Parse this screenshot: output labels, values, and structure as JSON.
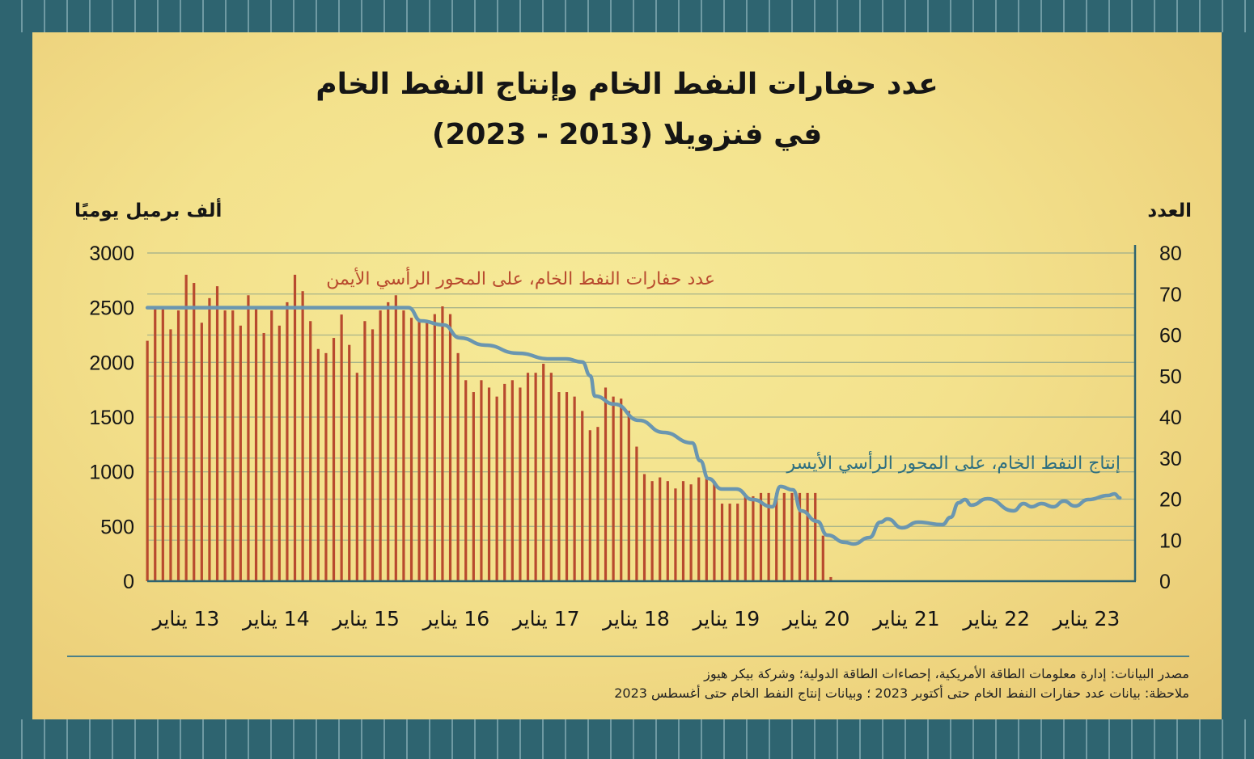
{
  "title_line1": "عدد حفارات النفط الخام وإنتاج النفط الخام",
  "title_line2": "في فنزويلا (2013 - 2023)",
  "colors": {
    "bars": "#b84a2e",
    "line": "#6a96b0",
    "axis": "#2e6470",
    "grid": "#a9b48a"
  },
  "chart_data": {
    "type": "bar+line",
    "left_axis": {
      "title": "ألف برميل يوميًا",
      "ticks": [
        0,
        500,
        1000,
        1500,
        2000,
        2500,
        3000
      ],
      "ylim": [
        0,
        3000
      ]
    },
    "right_axis": {
      "title": "العدد",
      "ticks": [
        0,
        10,
        20,
        30,
        40,
        50,
        60,
        70,
        80
      ],
      "ylim": [
        0,
        80
      ]
    },
    "x_ticks": [
      {
        "year": 2013,
        "label": "13 يناير"
      },
      {
        "year": 2014,
        "label": "14 يناير"
      },
      {
        "year": 2015,
        "label": "15 يناير"
      },
      {
        "year": 2016,
        "label": "16 يناير"
      },
      {
        "year": 2017,
        "label": "17 يناير"
      },
      {
        "year": 2018,
        "label": "18 يناير"
      },
      {
        "year": 2019,
        "label": "19 يناير"
      },
      {
        "year": 2020,
        "label": "20 يناير"
      },
      {
        "year": 2021,
        "label": "21 يناير"
      },
      {
        "year": 2022,
        "label": "22 يناير"
      },
      {
        "year": 2023,
        "label": "23 يناير"
      }
    ],
    "xlim": [
      2012.57,
      2023.55
    ],
    "series": [
      {
        "name": "عدد حفارات النفط الخام، على المحور الرأسي الأيمن",
        "type": "bar",
        "axis": "right",
        "x_start": 2012.57,
        "x_end": 2020.16,
        "values": [
          58.6,
          67,
          67,
          61.4,
          66,
          74.7,
          72.7,
          63,
          69,
          71.9,
          66,
          66,
          62.3,
          69.7,
          67,
          60.5,
          66,
          62.3,
          68,
          74.7,
          70.7,
          63.4,
          56.6,
          55.6,
          59.3,
          65,
          57.6,
          50.8,
          63.4,
          61.4,
          66,
          68,
          69.7,
          66,
          64.2,
          63.4,
          63.2,
          65.1,
          67,
          65.1,
          55.6,
          49,
          46.1,
          49,
          47.2,
          45,
          48.1,
          49,
          47.2,
          50.8,
          50.8,
          53,
          50.8,
          46.1,
          46.1,
          45,
          41.5,
          36.8,
          37.6,
          47.2,
          45,
          44.5,
          41.5,
          32.8,
          26.1,
          24.4,
          25.3,
          24.4,
          22.6,
          24.4,
          23.6,
          25.3,
          25.3,
          24.4,
          18.9,
          18.9,
          18.9,
          20.7,
          20.7,
          21.5,
          21.5,
          21.5,
          21.5,
          21.5,
          21.5,
          21.5,
          21.5,
          11.1,
          1
        ]
      },
      {
        "name": "إنتاج النفط الخام، على المحور الرأسي الأيسر",
        "type": "line",
        "axis": "left",
        "points": [
          [
            2012.57,
            2500
          ],
          [
            2015.47,
            2500
          ],
          [
            2015.61,
            2379
          ],
          [
            2015.86,
            2342
          ],
          [
            2016.04,
            2224
          ],
          [
            2016.32,
            2158
          ],
          [
            2016.68,
            2084
          ],
          [
            2017.04,
            2032
          ],
          [
            2017.22,
            2032
          ],
          [
            2017.4,
            2003
          ],
          [
            2017.49,
            1877
          ],
          [
            2017.54,
            1692
          ],
          [
            2017.76,
            1618
          ],
          [
            2018.03,
            1470
          ],
          [
            2018.3,
            1360
          ],
          [
            2018.62,
            1264
          ],
          [
            2018.71,
            1101
          ],
          [
            2018.8,
            938
          ],
          [
            2018.95,
            842
          ],
          [
            2019.11,
            842
          ],
          [
            2019.29,
            746
          ],
          [
            2019.51,
            680
          ],
          [
            2019.6,
            865
          ],
          [
            2019.74,
            835
          ],
          [
            2019.83,
            643
          ],
          [
            2020.01,
            547
          ],
          [
            2020.12,
            421
          ],
          [
            2020.32,
            355
          ],
          [
            2020.41,
            340
          ],
          [
            2020.59,
            399
          ],
          [
            2020.71,
            539
          ],
          [
            2020.79,
            569
          ],
          [
            2020.95,
            488
          ],
          [
            2021.13,
            539
          ],
          [
            2021.4,
            517
          ],
          [
            2021.49,
            584
          ],
          [
            2021.58,
            717
          ],
          [
            2021.65,
            746
          ],
          [
            2021.72,
            695
          ],
          [
            2021.9,
            754
          ],
          [
            2022.19,
            643
          ],
          [
            2022.3,
            709
          ],
          [
            2022.39,
            680
          ],
          [
            2022.5,
            709
          ],
          [
            2022.63,
            680
          ],
          [
            2022.75,
            732
          ],
          [
            2022.87,
            687
          ],
          [
            2023.02,
            746
          ],
          [
            2023.24,
            783
          ],
          [
            2023.31,
            798
          ],
          [
            2023.37,
            761
          ]
        ]
      }
    ]
  },
  "footer": {
    "source": "مصدر البيانات: إدارة معلومات الطاقة الأمريكية، إحصاءات الطاقة الدولية؛ وشركة بيكر هيوز",
    "note": "ملاحظة: بيانات عدد حفارات النفط الخام حتى أكتوبر 2023 ؛ وبيانات إنتاج النفط الخام حتى أغسطس 2023"
  }
}
